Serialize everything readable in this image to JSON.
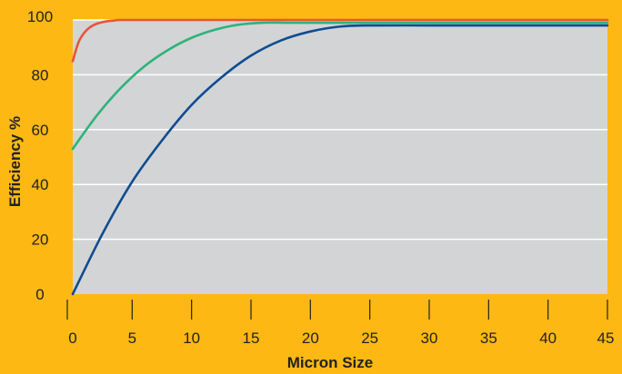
{
  "chart_data": {
    "type": "line",
    "title": "",
    "xlabel": "Micron Size",
    "ylabel": "Efficiency %",
    "xlim": [
      0,
      45
    ],
    "ylim": [
      0,
      100
    ],
    "x_ticks": [
      0,
      5,
      10,
      15,
      20,
      25,
      30,
      35,
      40,
      45
    ],
    "y_ticks": [
      0,
      20,
      40,
      60,
      80,
      100
    ],
    "grid": "horizontal",
    "legend": "none",
    "colors": {
      "background": "#FDB813",
      "plot_area": "#D3D4D6",
      "grid": "#FFFFFF",
      "text": "#222222"
    },
    "series": [
      {
        "color": "#E8553A",
        "x": [
          0,
          0.5,
          1,
          1.5,
          2,
          2.5,
          3,
          3.5,
          4,
          6,
          10,
          20,
          30,
          45
        ],
        "y": [
          85,
          92,
          95.5,
          97.5,
          98.6,
          99.2,
          99.6,
          99.8,
          100,
          100,
          100,
          100,
          100,
          100
        ]
      },
      {
        "color": "#2DB37A",
        "x": [
          0,
          2,
          4,
          6,
          8,
          10,
          12,
          14,
          16,
          18,
          20,
          25,
          30,
          35,
          40,
          45
        ],
        "y": [
          53,
          65,
          75,
          83,
          89,
          93.5,
          96.5,
          98.3,
          99,
          99,
          99,
          99,
          99,
          99,
          99,
          99
        ]
      },
      {
        "color": "#0E4C92",
        "x": [
          0,
          2.5,
          5,
          7.5,
          10,
          12.5,
          15,
          17.5,
          20,
          22.5,
          25,
          30,
          35,
          40,
          45
        ],
        "y": [
          0,
          22,
          41,
          56,
          69,
          79,
          87,
          92.5,
          95.8,
          97.6,
          98,
          98,
          98,
          98,
          98
        ]
      }
    ]
  }
}
